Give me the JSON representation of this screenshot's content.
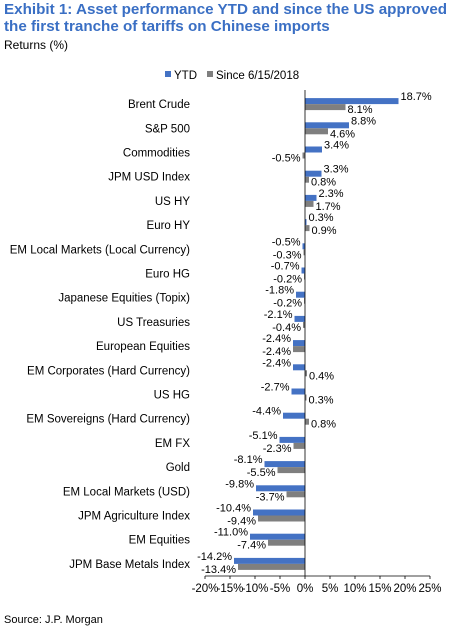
{
  "title": "Exhibit 1: Asset performance YTD and since the US approved the first tranche of tariffs on Chinese imports",
  "subtitle": "Returns (%)",
  "source": "Source: J.P. Morgan",
  "colors": {
    "ytd": "#4472c4",
    "since": "#7f7f7f",
    "title": "#3a6fc4"
  },
  "chart_data": {
    "type": "bar",
    "orientation": "horizontal",
    "categories": [
      "Brent Crude",
      "S&P 500",
      "Commodities",
      "JPM USD Index",
      "US HY",
      "Euro HY",
      "EM Local Markets (Local Currency)",
      "Euro HG",
      "Japanese Equities (Topix)",
      "US Treasuries",
      "European Equities",
      "EM Corporates (Hard Currency)",
      "US HG",
      "EM Sovereigns (Hard Currency)",
      "EM FX",
      "Gold",
      "EM Local Markets (USD)",
      "JPM Agriculture Index",
      "EM Equities",
      "JPM Base Metals Index"
    ],
    "series": [
      {
        "name": "YTD",
        "color": "#4472c4",
        "values": [
          18.7,
          8.8,
          3.4,
          3.3,
          2.3,
          0.3,
          -0.5,
          -0.7,
          -1.8,
          -2.1,
          -2.4,
          -2.4,
          -2.7,
          -4.4,
          -5.1,
          -8.1,
          -9.8,
          -10.4,
          -11.0,
          -14.2
        ],
        "labels": [
          "18.7%",
          "8.8%",
          "3.4%",
          "3.3%",
          "2.3%",
          "0.3%",
          "-0.5%",
          "-0.7%",
          "-1.8%",
          "-2.1%",
          "-2.4%",
          "-2.4%",
          "-2.7%",
          "-4.4%",
          "-5.1%",
          "-8.1%",
          "-9.8%",
          "-10.4%",
          "-11.0%",
          "-14.2%"
        ]
      },
      {
        "name": "Since 6/15/2018",
        "color": "#7f7f7f",
        "values": [
          8.1,
          4.6,
          -0.5,
          0.8,
          1.7,
          0.9,
          -0.3,
          -0.2,
          -0.2,
          -0.4,
          -2.4,
          0.4,
          0.3,
          0.8,
          -2.3,
          -5.5,
          -3.7,
          -9.4,
          -7.4,
          -13.4
        ],
        "labels": [
          "8.1%",
          "4.6%",
          "-0.5%",
          "0.8%",
          "1.7%",
          "0.9%",
          "-0.3%",
          "-0.2%",
          "-0.2%",
          "-0.4%",
          "-2.4%",
          "0.4%",
          "0.3%",
          "0.8%",
          "-2.3%",
          "-5.5%",
          "-3.7%",
          "-9.4%",
          "-7.4%",
          "-13.4%"
        ]
      }
    ],
    "xlim": [
      -20,
      25
    ],
    "xticks": [
      "-20%",
      "-15%",
      "-10%",
      "-5%",
      "0%",
      "5%",
      "10%",
      "15%",
      "20%",
      "25%"
    ],
    "legend_position": "top",
    "grid": false
  }
}
